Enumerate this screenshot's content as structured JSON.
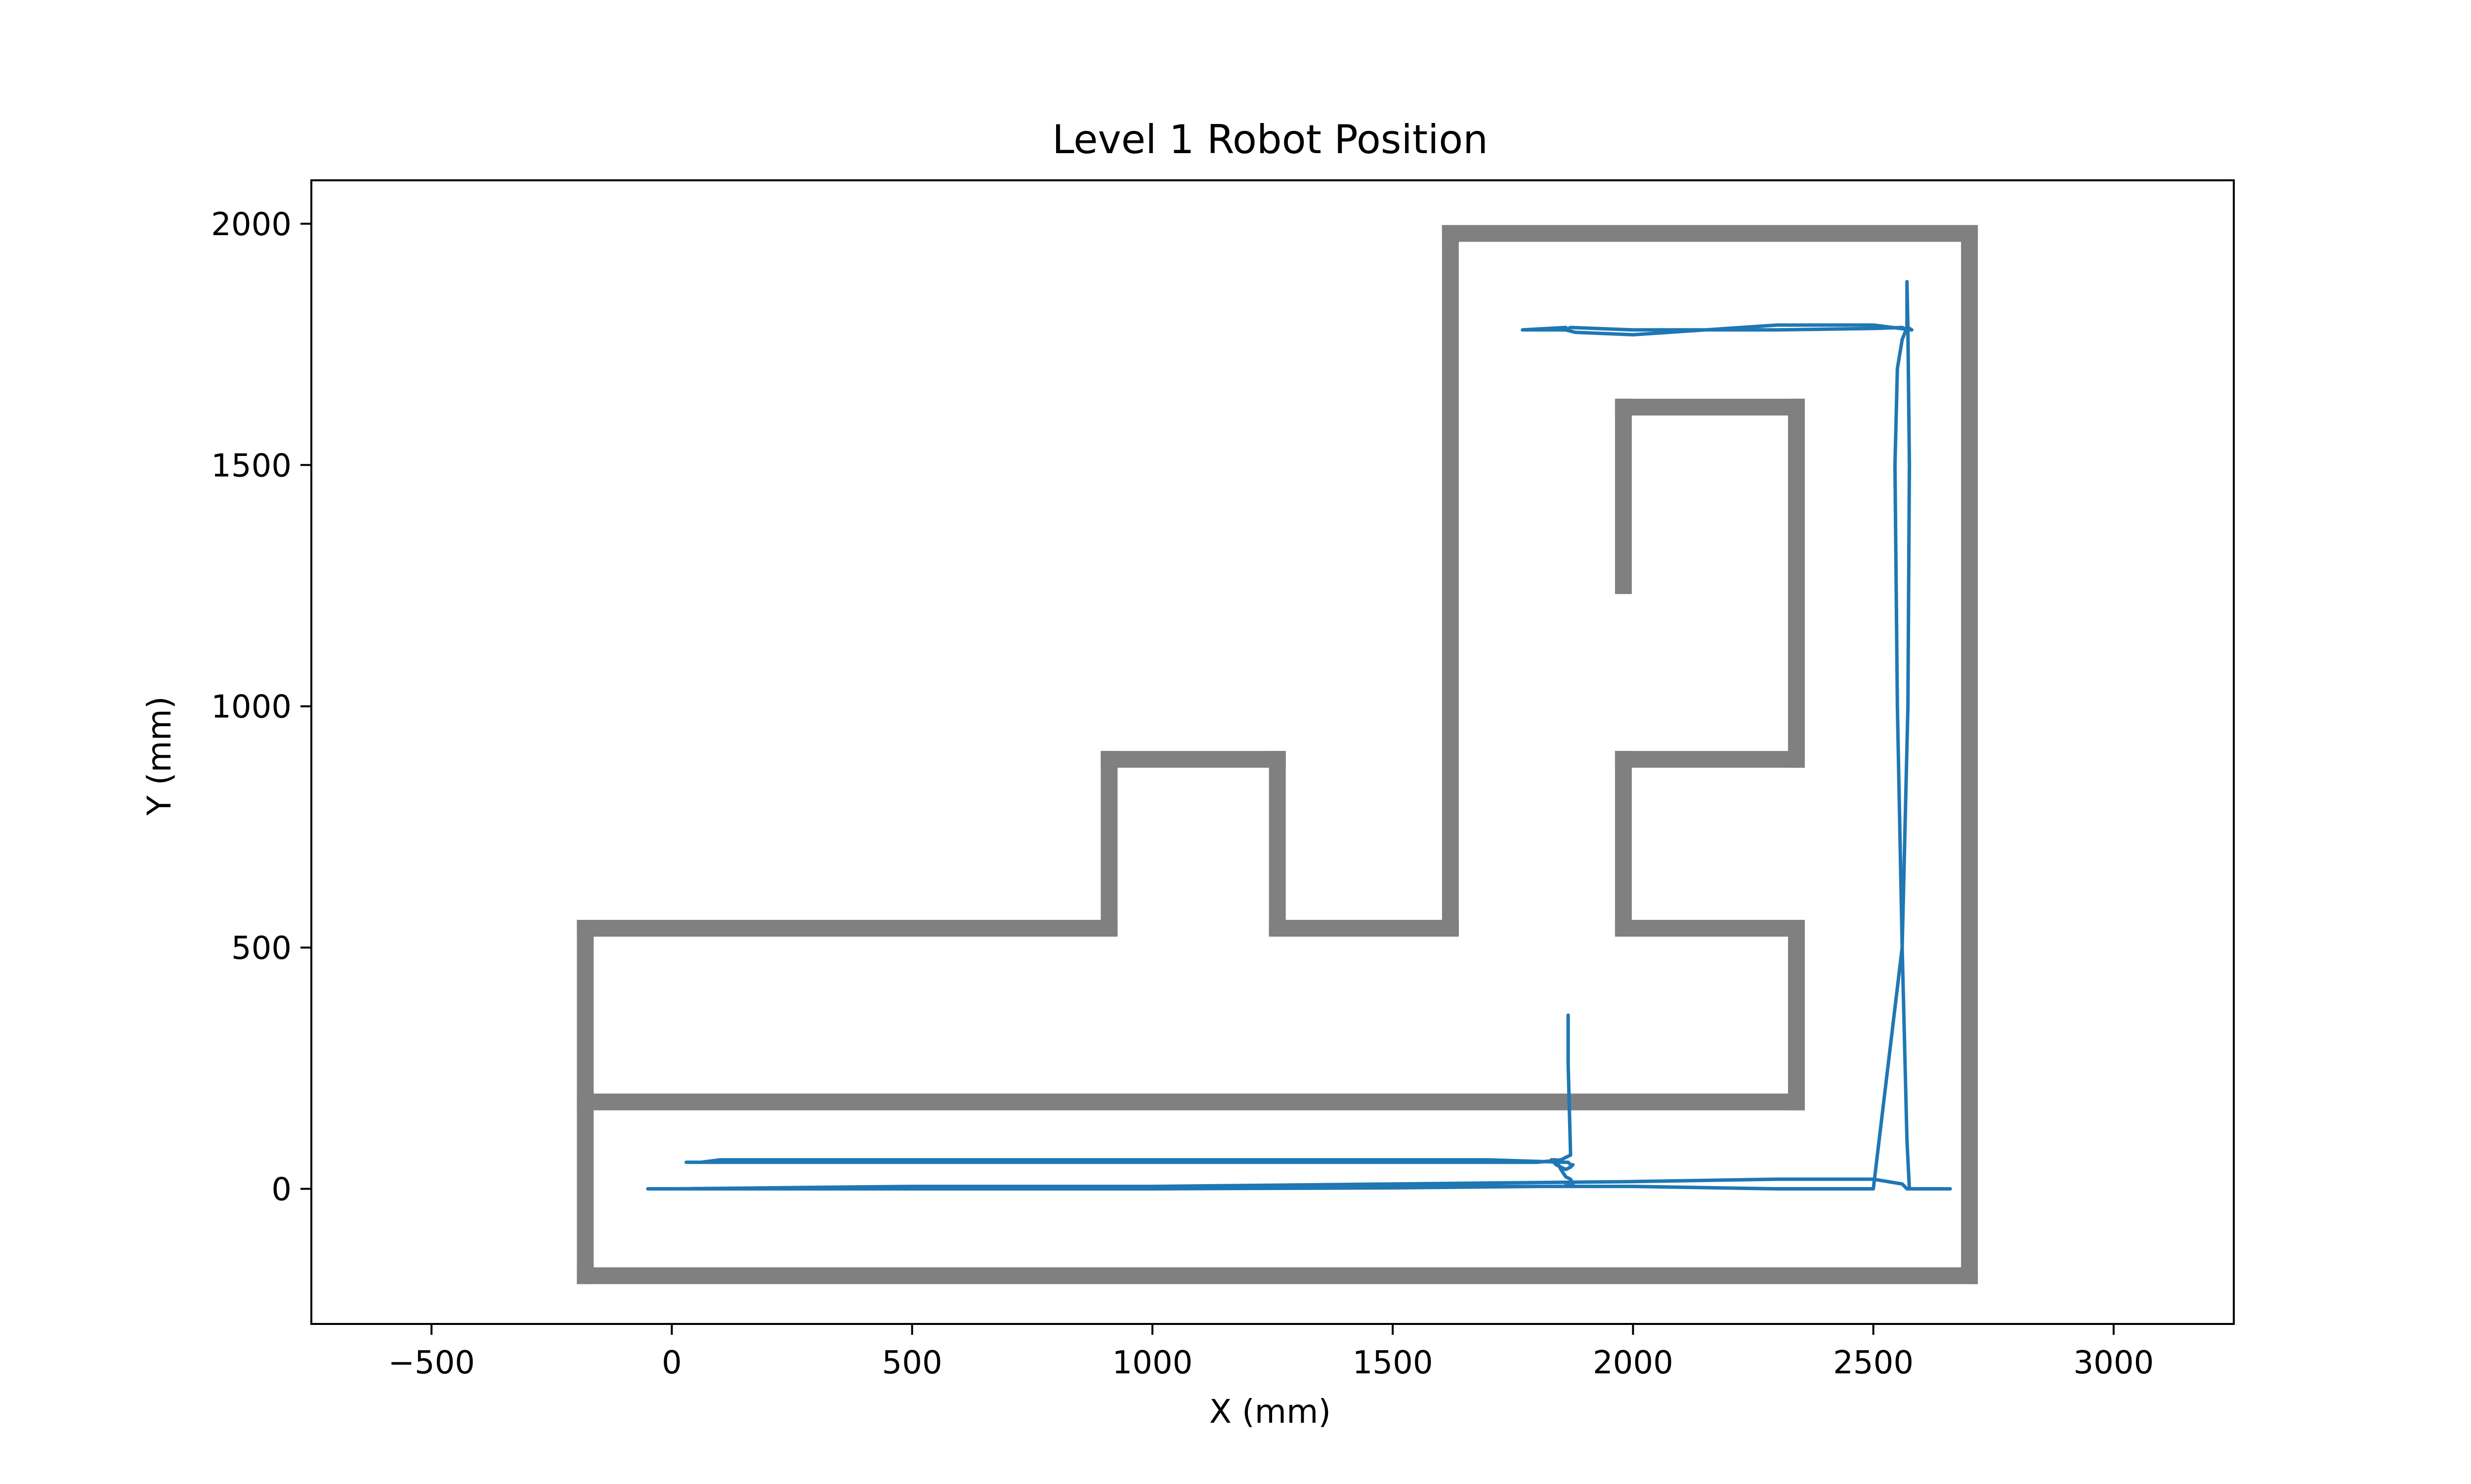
{
  "chart_data": {
    "type": "line",
    "title": "Level 1 Robot Position",
    "xlabel": "X (mm)",
    "ylabel": "Y (mm)",
    "xlim": [
      -750,
      3250
    ],
    "ylim": [
      -280,
      2090
    ],
    "xticks": [
      -500,
      0,
      500,
      1000,
      1500,
      2000,
      2500,
      3000
    ],
    "yticks": [
      0,
      500,
      1000,
      1500,
      2000
    ],
    "grid": false,
    "legend": "none",
    "walls": {
      "color": "#808080",
      "segments": [
        [
          [
            -180,
            -180
          ],
          [
            2700,
            -180
          ]
        ],
        [
          [
            2700,
            -180
          ],
          [
            2700,
            1980
          ]
        ],
        [
          [
            2700,
            1980
          ],
          [
            1620,
            1980
          ]
        ],
        [
          [
            1620,
            1980
          ],
          [
            1620,
            540
          ]
        ],
        [
          [
            1620,
            540
          ],
          [
            1260,
            540
          ]
        ],
        [
          [
            1260,
            540
          ],
          [
            1260,
            890
          ]
        ],
        [
          [
            1260,
            890
          ],
          [
            910,
            890
          ]
        ],
        [
          [
            910,
            890
          ],
          [
            910,
            540
          ]
        ],
        [
          [
            910,
            540
          ],
          [
            -180,
            540
          ]
        ],
        [
          [
            -180,
            540
          ],
          [
            -180,
            -180
          ]
        ],
        [
          [
            -180,
            180
          ],
          [
            2340,
            180
          ]
        ],
        [
          [
            2340,
            180
          ],
          [
            2340,
            540
          ]
        ],
        [
          [
            2340,
            540
          ],
          [
            1980,
            540
          ]
        ],
        [
          [
            1980,
            540
          ],
          [
            1980,
            890
          ]
        ],
        [
          [
            1980,
            890
          ],
          [
            2340,
            890
          ]
        ],
        [
          [
            2340,
            890
          ],
          [
            2340,
            1620
          ]
        ],
        [
          [
            2340,
            1620
          ],
          [
            1980,
            1620
          ]
        ],
        [
          [
            1980,
            1620
          ],
          [
            1980,
            1250
          ]
        ]
      ]
    },
    "series": [
      {
        "color": "#1f77b4",
        "x": [
          0,
          500,
          1000,
          1500,
          2000,
          2300,
          2500,
          2560,
          2570,
          2660,
          2575,
          2570,
          2560,
          2550,
          2545,
          2550,
          2560,
          2570,
          2570,
          2572,
          2580,
          2500,
          2300,
          2000,
          1880,
          1860,
          1860,
          1770,
          1860,
          1870,
          2000,
          2300,
          2500,
          2560,
          2572,
          2575,
          2572,
          2560,
          2500,
          2300,
          2000,
          1500,
          1000,
          500,
          0,
          -50,
          0,
          1000,
          1500,
          1800,
          1855,
          1875,
          1870,
          1860,
          1850,
          1840,
          1830,
          1840,
          1860,
          1870,
          1875,
          1870,
          1865,
          1860,
          1700,
          1300,
          700,
          300,
          100,
          60,
          30,
          50,
          100,
          200,
          350,
          500,
          1000,
          1500,
          1700,
          1800,
          1850,
          1870,
          1865,
          1865
        ],
        "y": [
          0,
          2,
          5,
          10,
          15,
          20,
          20,
          10,
          0,
          0,
          0,
          100,
          500,
          1000,
          1500,
          1700,
          1760,
          1785,
          1880,
          1785,
          1780,
          1790,
          1790,
          1770,
          1775,
          1780,
          1785,
          1780,
          1780,
          1785,
          1780,
          1780,
          1783,
          1785,
          1780,
          1500,
          1000,
          500,
          0,
          0,
          5,
          5,
          5,
          5,
          0,
          0,
          0,
          0,
          2,
          5,
          5,
          10,
          20,
          25,
          40,
          60,
          60,
          50,
          40,
          45,
          50,
          50,
          55,
          55,
          60,
          60,
          60,
          60,
          60,
          55,
          55,
          55,
          55,
          55,
          55,
          55,
          55,
          55,
          55,
          55,
          60,
          70,
          260,
          360
        ]
      }
    ]
  }
}
